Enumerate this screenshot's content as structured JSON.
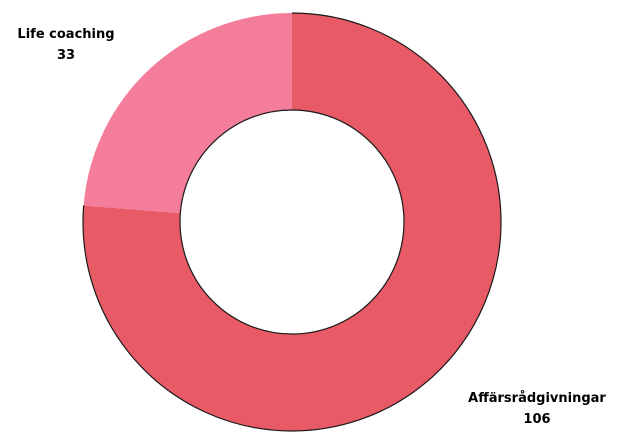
{
  "chart_data": {
    "type": "pie",
    "variant": "donut",
    "title": "",
    "categories": [
      "Affärsrådgivningar",
      "Life coaching"
    ],
    "values": [
      106,
      33
    ],
    "colors": [
      "#e85a66",
      "#f37d9b"
    ],
    "slice_labels": [
      {
        "name": "Affärsrådgivningar",
        "value": "106"
      },
      {
        "name": "Life coaching",
        "value": "33"
      }
    ],
    "legend": "none",
    "start_angle": "top, clockwise"
  }
}
